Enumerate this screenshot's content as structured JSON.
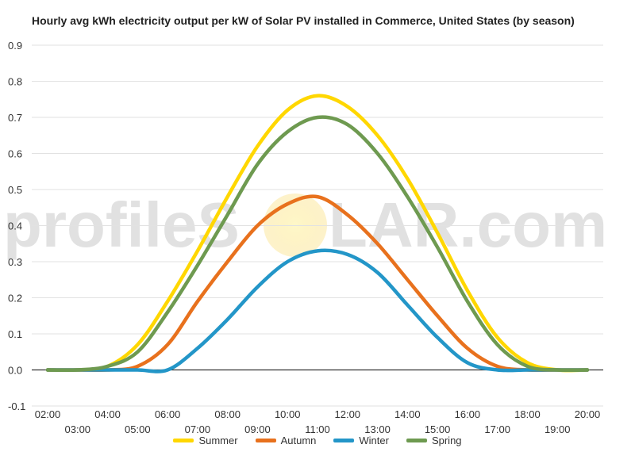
{
  "chart_data": {
    "type": "line",
    "title": "Hourly avg kWh electricity output per kW of Solar PV installed in Commerce, United States (by season)",
    "xlabel": "",
    "ylabel": "",
    "ylim": [
      -0.1,
      0.9
    ],
    "yticks": [
      "0.9",
      "0.8",
      "0.7",
      "0.6",
      "0.5",
      "0.4",
      "0.3",
      "0.2",
      "0.1",
      "0.0",
      "-0.1"
    ],
    "x": [
      "02:00",
      "03:00",
      "04:00",
      "05:00",
      "06:00",
      "07:00",
      "08:00",
      "09:00",
      "10:00",
      "11:00",
      "12:00",
      "13:00",
      "14:00",
      "15:00",
      "16:00",
      "17:00",
      "18:00",
      "19:00",
      "20:00"
    ],
    "grid": true,
    "legend_position": "bottom",
    "series": [
      {
        "name": "Summer",
        "color": "#FFD700",
        "values": [
          0.0,
          0.0,
          0.01,
          0.07,
          0.19,
          0.33,
          0.48,
          0.62,
          0.72,
          0.76,
          0.73,
          0.65,
          0.53,
          0.38,
          0.22,
          0.09,
          0.02,
          0.0,
          0.0
        ]
      },
      {
        "name": "Autumn",
        "color": "#E8711D",
        "values": [
          0.0,
          0.0,
          0.0,
          0.01,
          0.07,
          0.19,
          0.3,
          0.4,
          0.46,
          0.48,
          0.43,
          0.35,
          0.25,
          0.15,
          0.06,
          0.01,
          0.0,
          0.0,
          0.0
        ]
      },
      {
        "name": "Winter",
        "color": "#2396C8",
        "values": [
          0.0,
          0.0,
          0.0,
          0.0,
          0.0,
          0.06,
          0.14,
          0.23,
          0.3,
          0.33,
          0.32,
          0.27,
          0.18,
          0.09,
          0.02,
          0.0,
          0.0,
          0.0,
          0.0
        ]
      },
      {
        "name": "Spring",
        "color": "#6E9A50",
        "values": [
          0.0,
          0.0,
          0.01,
          0.05,
          0.16,
          0.29,
          0.43,
          0.57,
          0.66,
          0.7,
          0.68,
          0.6,
          0.48,
          0.34,
          0.19,
          0.07,
          0.01,
          0.0,
          0.0
        ]
      }
    ]
  },
  "watermark": {
    "text_left": "profileS",
    "text_right": "LAR.com"
  }
}
